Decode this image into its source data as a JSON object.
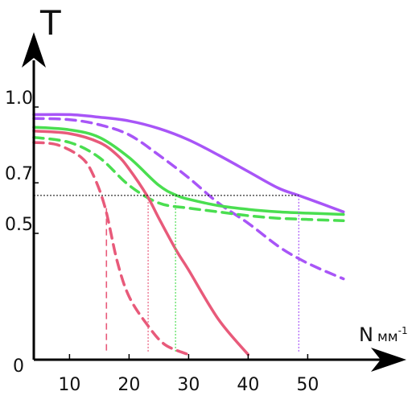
{
  "chart_data": {
    "type": "line",
    "y_axis_label": "T",
    "x_axis_label": "N",
    "x_axis_unit": "мм",
    "x_axis_unit_exponent": "-1",
    "origin_label": "0",
    "xlim": [
      4,
      58
    ],
    "ylim": [
      0,
      1.0
    ],
    "x_ticks": [
      {
        "value": 10,
        "label": "10"
      },
      {
        "value": 20,
        "label": "20"
      },
      {
        "value": 30,
        "label": "30"
      },
      {
        "value": 40,
        "label": "40"
      },
      {
        "value": 50,
        "label": "50"
      }
    ],
    "y_ticks": [
      {
        "value": 1.0,
        "label": "1.0"
      },
      {
        "value": 0.7,
        "label": "0.7"
      },
      {
        "value": 0.5,
        "label": "0.5"
      }
    ],
    "grid": false,
    "legend": "none",
    "reference_level": 0.65,
    "series": [
      {
        "color": "#a855f7",
        "style": "solid",
        "x": [
          4,
          10,
          15,
          20,
          25,
          30,
          35,
          40,
          45,
          48.5,
          52,
          56
        ],
        "y": [
          0.97,
          0.97,
          0.96,
          0.945,
          0.915,
          0.87,
          0.81,
          0.745,
          0.68,
          0.65,
          0.62,
          0.585
        ]
      },
      {
        "color": "#a855f7",
        "style": "dashed",
        "x": [
          4,
          10,
          15,
          20,
          25,
          30,
          35,
          40,
          45,
          48.5,
          52,
          56
        ],
        "y": [
          0.955,
          0.95,
          0.93,
          0.89,
          0.81,
          0.72,
          0.62,
          0.54,
          0.45,
          0.4,
          0.36,
          0.32
        ]
      },
      {
        "color": "#4ade50",
        "style": "solid",
        "x": [
          4,
          10,
          15,
          20,
          25,
          28,
          30,
          35,
          40,
          45,
          50,
          56
        ],
        "y": [
          0.92,
          0.91,
          0.88,
          0.8,
          0.69,
          0.65,
          0.635,
          0.61,
          0.595,
          0.585,
          0.58,
          0.575
        ]
      },
      {
        "color": "#4ade50",
        "style": "dashed",
        "x": [
          4,
          10,
          15,
          20,
          25,
          30,
          35,
          40,
          45,
          50,
          56
        ],
        "y": [
          0.88,
          0.86,
          0.8,
          0.69,
          0.62,
          0.6,
          0.585,
          0.57,
          0.56,
          0.555,
          0.55
        ]
      },
      {
        "color": "#e85a7a",
        "style": "solid",
        "x": [
          4,
          10,
          15,
          18,
          20,
          23,
          25,
          28,
          30,
          35,
          40
        ],
        "y": [
          0.905,
          0.895,
          0.86,
          0.81,
          0.755,
          0.65,
          0.56,
          0.43,
          0.355,
          0.16,
          0.02
        ]
      },
      {
        "color": "#e85a7a",
        "style": "dashed",
        "x": [
          4,
          8,
          12,
          14,
          16,
          18,
          20,
          23,
          26,
          30
        ],
        "y": [
          0.86,
          0.85,
          0.8,
          0.73,
          0.6,
          0.39,
          0.25,
          0.14,
          0.06,
          0.02
        ]
      }
    ],
    "markers": [
      {
        "color": "#e85a7a",
        "style": "dashed",
        "x": 16.2,
        "y_top": 0.6
      },
      {
        "color": "#e85a7a",
        "style": "dotted",
        "x": 23.2,
        "y_top": 0.65
      },
      {
        "color": "#4ade50",
        "style": "dotted",
        "x": 27.8,
        "y_top": 0.65
      },
      {
        "color": "#a855f7",
        "style": "dotted",
        "x": 48.5,
        "y_top": 0.65
      }
    ]
  }
}
